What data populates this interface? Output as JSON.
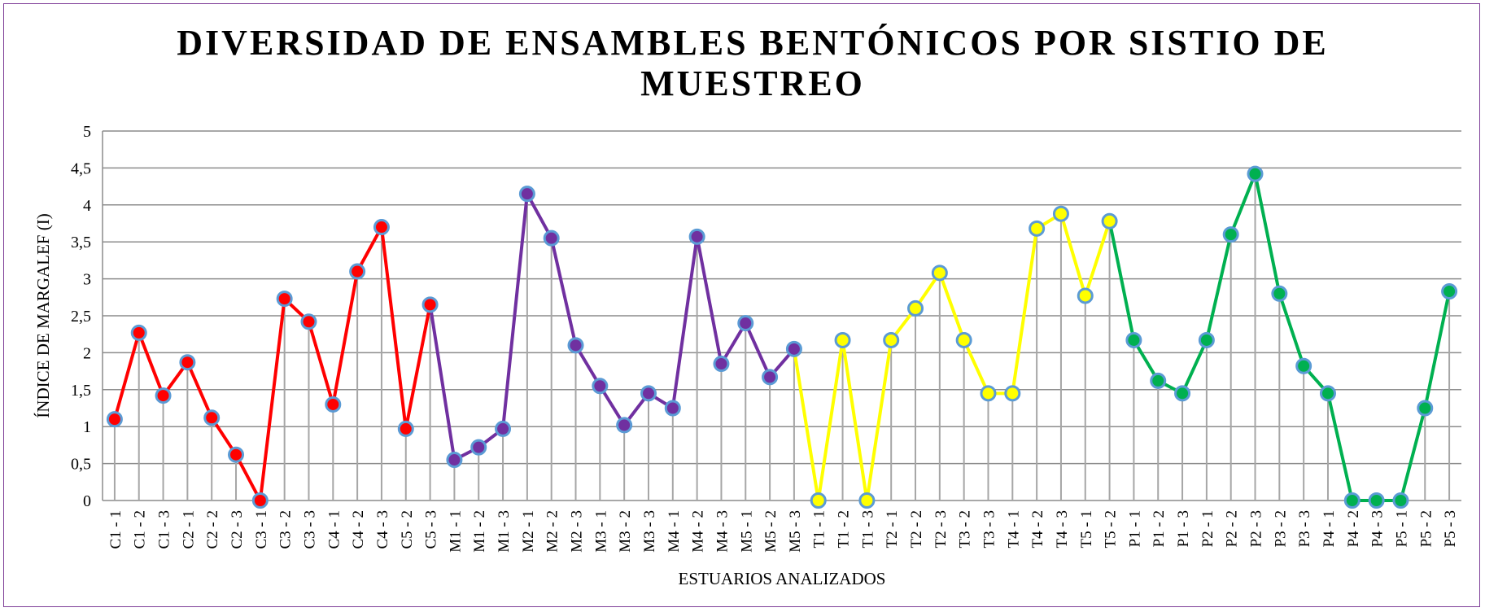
{
  "chart_data": {
    "type": "line",
    "title": "DIVERSIDAD DE ENSAMBLES BENTÓNICOS POR SISTIO DE MUESTREO",
    "x_label": "ESTUARIOS ANALIZADOS",
    "y_label": "ÍNDICE DE MARGALEF (I)",
    "categories": [
      "C1 - 1",
      "C1 - 2",
      "C1 - 3",
      "C2 - 1",
      "C2 - 2",
      "C2 - 3",
      "C3 - 1",
      "C3 - 2",
      "C3 - 3",
      "C4 - 1",
      "C4 - 2",
      "C4 - 3",
      "C5 - 2",
      "C5 - 3",
      "M1 - 1",
      "M1 - 2",
      "M1 - 3",
      "M2 - 1",
      "M2 - 2",
      "M2 - 3",
      "M3 - 1",
      "M3 - 2",
      "M3 - 3",
      "M4 - 1",
      "M4 - 2",
      "M4 - 3",
      "M5 - 1",
      "M5 - 2",
      "M5 - 3",
      "T1 - 1",
      "T1 - 2",
      "T1 - 3",
      "T2 - 1",
      "T2 - 2",
      "T2 - 3",
      "T3 - 2",
      "T3 - 3",
      "T4 - 1",
      "T4 - 2",
      "T4 - 3",
      "T5 - 1",
      "T5 - 2",
      "P1 - 1",
      "P1 - 2",
      "P1 - 3",
      "P2 - 1",
      "P2 - 2",
      "P2 - 3",
      "P3 - 2",
      "P3 - 3",
      "P4 - 1",
      "P4 - 2",
      "P4 - 3",
      "P5 - 1",
      "P5 - 2",
      "P5 - 3"
    ],
    "series": [
      {
        "color": "#ff0000",
        "values": [
          1.1,
          2.27,
          1.42,
          1.87,
          1.12,
          0.62,
          0,
          2.73,
          2.42,
          1.3,
          3.1,
          3.7,
          0.97,
          2.65,
          null,
          null,
          null,
          null,
          null,
          null,
          null,
          null,
          null,
          null,
          null,
          null,
          null,
          null,
          null,
          null,
          null,
          null,
          null,
          null,
          null,
          null,
          null,
          null,
          null,
          null,
          null,
          null,
          null,
          null,
          null,
          null,
          null,
          null,
          null,
          null,
          null,
          null,
          null,
          null,
          null,
          null
        ]
      },
      {
        "color": "#7030a0",
        "values": [
          null,
          null,
          null,
          null,
          null,
          null,
          null,
          null,
          null,
          null,
          null,
          null,
          null,
          null,
          0.55,
          0.72,
          0.97,
          4.15,
          3.55,
          2.1,
          1.55,
          1.02,
          1.45,
          1.25,
          3.57,
          1.85,
          2.4,
          1.67,
          2.05,
          null,
          null,
          null,
          null,
          null,
          null,
          null,
          null,
          null,
          null,
          null,
          null,
          null,
          null,
          null,
          null,
          null,
          null,
          null,
          null,
          null,
          null,
          null,
          null,
          null,
          null,
          null
        ]
      },
      {
        "color": "#ffff00",
        "values": [
          null,
          null,
          null,
          null,
          null,
          null,
          null,
          null,
          null,
          null,
          null,
          null,
          null,
          null,
          null,
          null,
          null,
          null,
          null,
          null,
          null,
          null,
          null,
          null,
          null,
          null,
          null,
          null,
          null,
          0,
          2.17,
          0,
          2.17,
          2.6,
          3.08,
          2.17,
          1.45,
          1.45,
          3.68,
          3.88,
          2.77,
          3.78,
          null,
          null,
          null,
          null,
          null,
          null,
          null,
          null,
          null,
          null,
          null,
          null,
          null,
          null
        ]
      },
      {
        "color": "#00b050",
        "values": [
          null,
          null,
          null,
          null,
          null,
          null,
          null,
          null,
          null,
          null,
          null,
          null,
          null,
          null,
          null,
          null,
          null,
          null,
          null,
          null,
          null,
          null,
          null,
          null,
          null,
          null,
          null,
          null,
          null,
          null,
          null,
          null,
          null,
          null,
          null,
          null,
          null,
          null,
          null,
          null,
          null,
          null,
          2.17,
          1.62,
          1.45,
          2.17,
          3.6,
          4.42,
          2.8,
          1.82,
          1.45,
          0,
          0,
          0,
          1.25,
          2.83
        ]
      }
    ],
    "marker_edge_color": "#5b9bd5",
    "ylim": [
      0,
      5
    ],
    "yticks": [
      0,
      {
        "value": 0.5,
        "label": "0,5"
      },
      1,
      {
        "value": 1.5,
        "label": "1,5"
      },
      2,
      {
        "value": 2.5,
        "label": "2,5"
      },
      3,
      {
        "value": 3.5,
        "label": "3,5"
      },
      4,
      {
        "value": 4.5,
        "label": "4,5"
      },
      5
    ],
    "grid": true
  }
}
